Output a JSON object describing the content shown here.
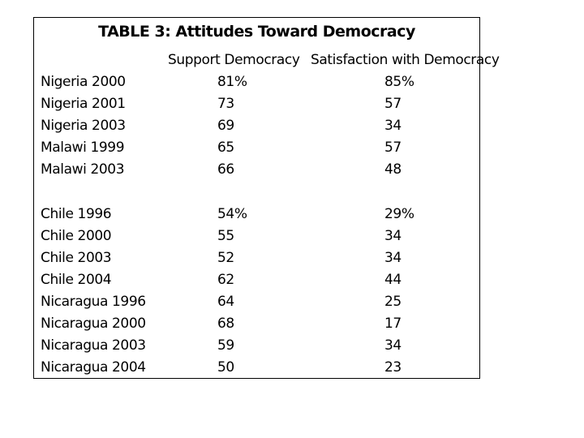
{
  "table": {
    "title": "TABLE 3: Attitudes Toward Democracy",
    "headers": {
      "support": "Support Democracy",
      "satisfaction": "Satisfaction with Democracy"
    },
    "rows": [
      {
        "country": "Nigeria 2000",
        "support": "81%",
        "satisfaction": "85%"
      },
      {
        "country": "Nigeria 2001",
        "support": "73",
        "satisfaction": "57"
      },
      {
        "country": "Nigeria 2003",
        "support": "69",
        "satisfaction": "34"
      },
      {
        "country": "Malawi 1999",
        "support": "65",
        "satisfaction": "57"
      },
      {
        "country": "Malawi 2003",
        "support": "66",
        "satisfaction": "48"
      },
      {
        "country": "Chile 1996",
        "support": "54%",
        "satisfaction": "29%"
      },
      {
        "country": "Chile 2000",
        "support": "55",
        "satisfaction": "34"
      },
      {
        "country": "Chile 2003",
        "support": "52",
        "satisfaction": "34"
      },
      {
        "country": "Chile 2004",
        "support": "62",
        "satisfaction": "44"
      },
      {
        "country": "Nicaragua 1996",
        "support": "64",
        "satisfaction": "25"
      },
      {
        "country": "Nicaragua 2000",
        "support": "68",
        "satisfaction": "17"
      },
      {
        "country": "Nicaragua 2003",
        "support": "59",
        "satisfaction": "34"
      },
      {
        "country": "Nicaragua 2004",
        "support": "50",
        "satisfaction": "23"
      }
    ]
  }
}
